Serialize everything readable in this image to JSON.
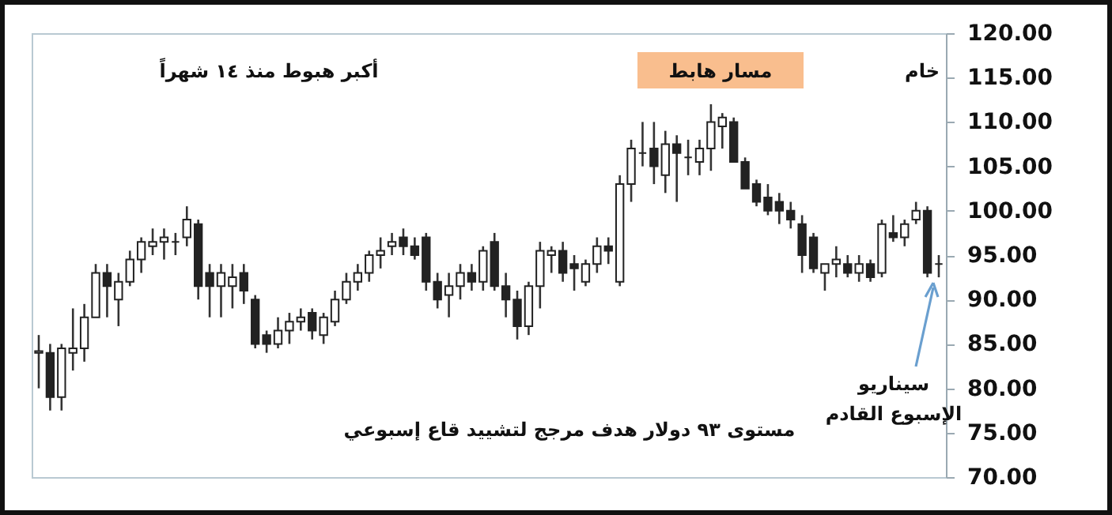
{
  "chart_data": {
    "type": "candlestick",
    "annotations": [
      "أكبر هبوط منذ ١٤ شهراً",
      "خام",
      "مسار هابط",
      "سيناريو الإسبوع القادم",
      "مستوى ٩٣ دولار هدف مرجج لتشييد قاع إسبوعي"
    ],
    "categories": [
      null,
      null,
      null,
      null,
      null,
      null,
      null,
      null,
      null,
      null,
      null,
      null,
      null,
      null,
      null,
      null,
      null,
      null,
      null,
      null,
      null,
      null,
      null,
      null,
      null,
      null,
      null,
      null,
      null,
      null,
      null,
      null,
      null,
      null,
      null,
      null,
      null,
      null,
      null,
      null,
      null,
      null,
      null,
      null,
      null,
      null,
      null,
      null,
      null,
      null,
      null,
      null,
      null,
      null,
      null,
      null,
      null,
      null,
      null,
      null,
      null,
      null,
      null,
      null,
      null,
      null,
      null,
      null,
      null,
      null,
      null,
      null,
      null,
      null,
      null,
      null,
      null,
      null,
      null,
      null
    ],
    "ohlc": [
      [
        84,
        86,
        80,
        84.2
      ],
      [
        84,
        85,
        77.5,
        79
      ],
      [
        79,
        85,
        77.5,
        84.5
      ],
      [
        84,
        89,
        82,
        84.5
      ],
      [
        84.5,
        89.5,
        83,
        88
      ],
      [
        88,
        94,
        88,
        93
      ],
      [
        93,
        94,
        88,
        91.5
      ],
      [
        90,
        93,
        87,
        92
      ],
      [
        92,
        95.5,
        91.5,
        94.5
      ],
      [
        94.5,
        97,
        93,
        96.5
      ],
      [
        96,
        98,
        95,
        96.5
      ],
      [
        96.5,
        98,
        94.5,
        97
      ],
      [
        96.5,
        97.5,
        95,
        96.5
      ],
      [
        97,
        100.5,
        96,
        99
      ],
      [
        98.5,
        99,
        90,
        91.5
      ],
      [
        93,
        94,
        88,
        91.5
      ],
      [
        91.5,
        94,
        88,
        93
      ],
      [
        91.5,
        94,
        89,
        92.5
      ],
      [
        93,
        94,
        89.5,
        91
      ],
      [
        90,
        90.5,
        84.5,
        85
      ],
      [
        86,
        86.5,
        84,
        85
      ],
      [
        85,
        88,
        84.5,
        86.5
      ],
      [
        86.5,
        88.5,
        85,
        87.5
      ],
      [
        87.5,
        89,
        86.5,
        88
      ],
      [
        88.5,
        89,
        85.5,
        86.5
      ],
      [
        86,
        88.5,
        85,
        88
      ],
      [
        87.5,
        91,
        87,
        90
      ],
      [
        90,
        93,
        89.5,
        92
      ],
      [
        92,
        94,
        91,
        93
      ],
      [
        93,
        95.5,
        92,
        95
      ],
      [
        95,
        97,
        93.5,
        95.5
      ],
      [
        96,
        97.5,
        95,
        96.5
      ],
      [
        97,
        98,
        95,
        96
      ],
      [
        96,
        97,
        94.5,
        95
      ],
      [
        97,
        97.5,
        91,
        92
      ],
      [
        92,
        93,
        89,
        90
      ],
      [
        90.5,
        93,
        88,
        91.5
      ],
      [
        91.5,
        94,
        90,
        93
      ],
      [
        93,
        94,
        91,
        92
      ],
      [
        92,
        96,
        91,
        95.5
      ],
      [
        96.5,
        97.5,
        91,
        91.5
      ],
      [
        91.5,
        93,
        88,
        90
      ],
      [
        90,
        91,
        85.5,
        87
      ],
      [
        87,
        92,
        86,
        91.5
      ],
      [
        91.5,
        96.5,
        89,
        95.5
      ],
      [
        95,
        96,
        93,
        95.5
      ],
      [
        95.5,
        96.5,
        92,
        93
      ],
      [
        94,
        95,
        91,
        93.5
      ],
      [
        92,
        94.5,
        91.5,
        94
      ],
      [
        94,
        97,
        93,
        96
      ],
      [
        96,
        97,
        94,
        95.5
      ],
      [
        92,
        104,
        91.5,
        103
      ],
      [
        103,
        108,
        101,
        107
      ],
      [
        106.5,
        110,
        105,
        106.5
      ],
      [
        107,
        110,
        103,
        105
      ],
      [
        104,
        109,
        102,
        107.5
      ],
      [
        107.5,
        108.5,
        101,
        106.5
      ],
      [
        106,
        108,
        104,
        106
      ],
      [
        105.5,
        108,
        104,
        107
      ],
      [
        107,
        112,
        104.5,
        110
      ],
      [
        109.5,
        111,
        107,
        110.5
      ],
      [
        110,
        110.5,
        105.5,
        105.5
      ],
      [
        105.5,
        106,
        102.5,
        102.5
      ],
      [
        103,
        103.5,
        100.5,
        101
      ],
      [
        101.5,
        103,
        99.5,
        100
      ],
      [
        101,
        102,
        98.5,
        100
      ],
      [
        100,
        101,
        98,
        99
      ],
      [
        98.5,
        99.5,
        93,
        95
      ],
      [
        97,
        97.5,
        93,
        93.5
      ],
      [
        93,
        94,
        91,
        94
      ],
      [
        94,
        96,
        92.5,
        94.5
      ],
      [
        94,
        95,
        92.5,
        93
      ],
      [
        93,
        95,
        92,
        94
      ],
      [
        94,
        94.5,
        92,
        92.5
      ],
      [
        93,
        99,
        92.5,
        98.5
      ],
      [
        97.5,
        99.5,
        96.5,
        97
      ],
      [
        97,
        99,
        96,
        98.5
      ],
      [
        99,
        101,
        98.5,
        100
      ],
      [
        100,
        100.5,
        92.5,
        93
      ],
      [
        94,
        95,
        92.5,
        94
      ]
    ],
    "ylim": [
      70,
      120
    ],
    "yticks": [
      {
        "value": 70,
        "label": "70.00"
      },
      {
        "value": 75,
        "label": "75.00"
      },
      {
        "value": 80,
        "label": "80.00"
      },
      {
        "value": 85,
        "label": "85.00"
      },
      {
        "value": 90,
        "label": "90.00"
      },
      {
        "value": 95,
        "label": "95.00"
      },
      {
        "value": 100,
        "label": "100.00"
      },
      {
        "value": 105,
        "label": "105.00"
      },
      {
        "value": 110,
        "label": "110.00"
      },
      {
        "value": 115,
        "label": "115.00"
      },
      {
        "value": 120,
        "label": "120.00"
      }
    ],
    "grid": false
  }
}
